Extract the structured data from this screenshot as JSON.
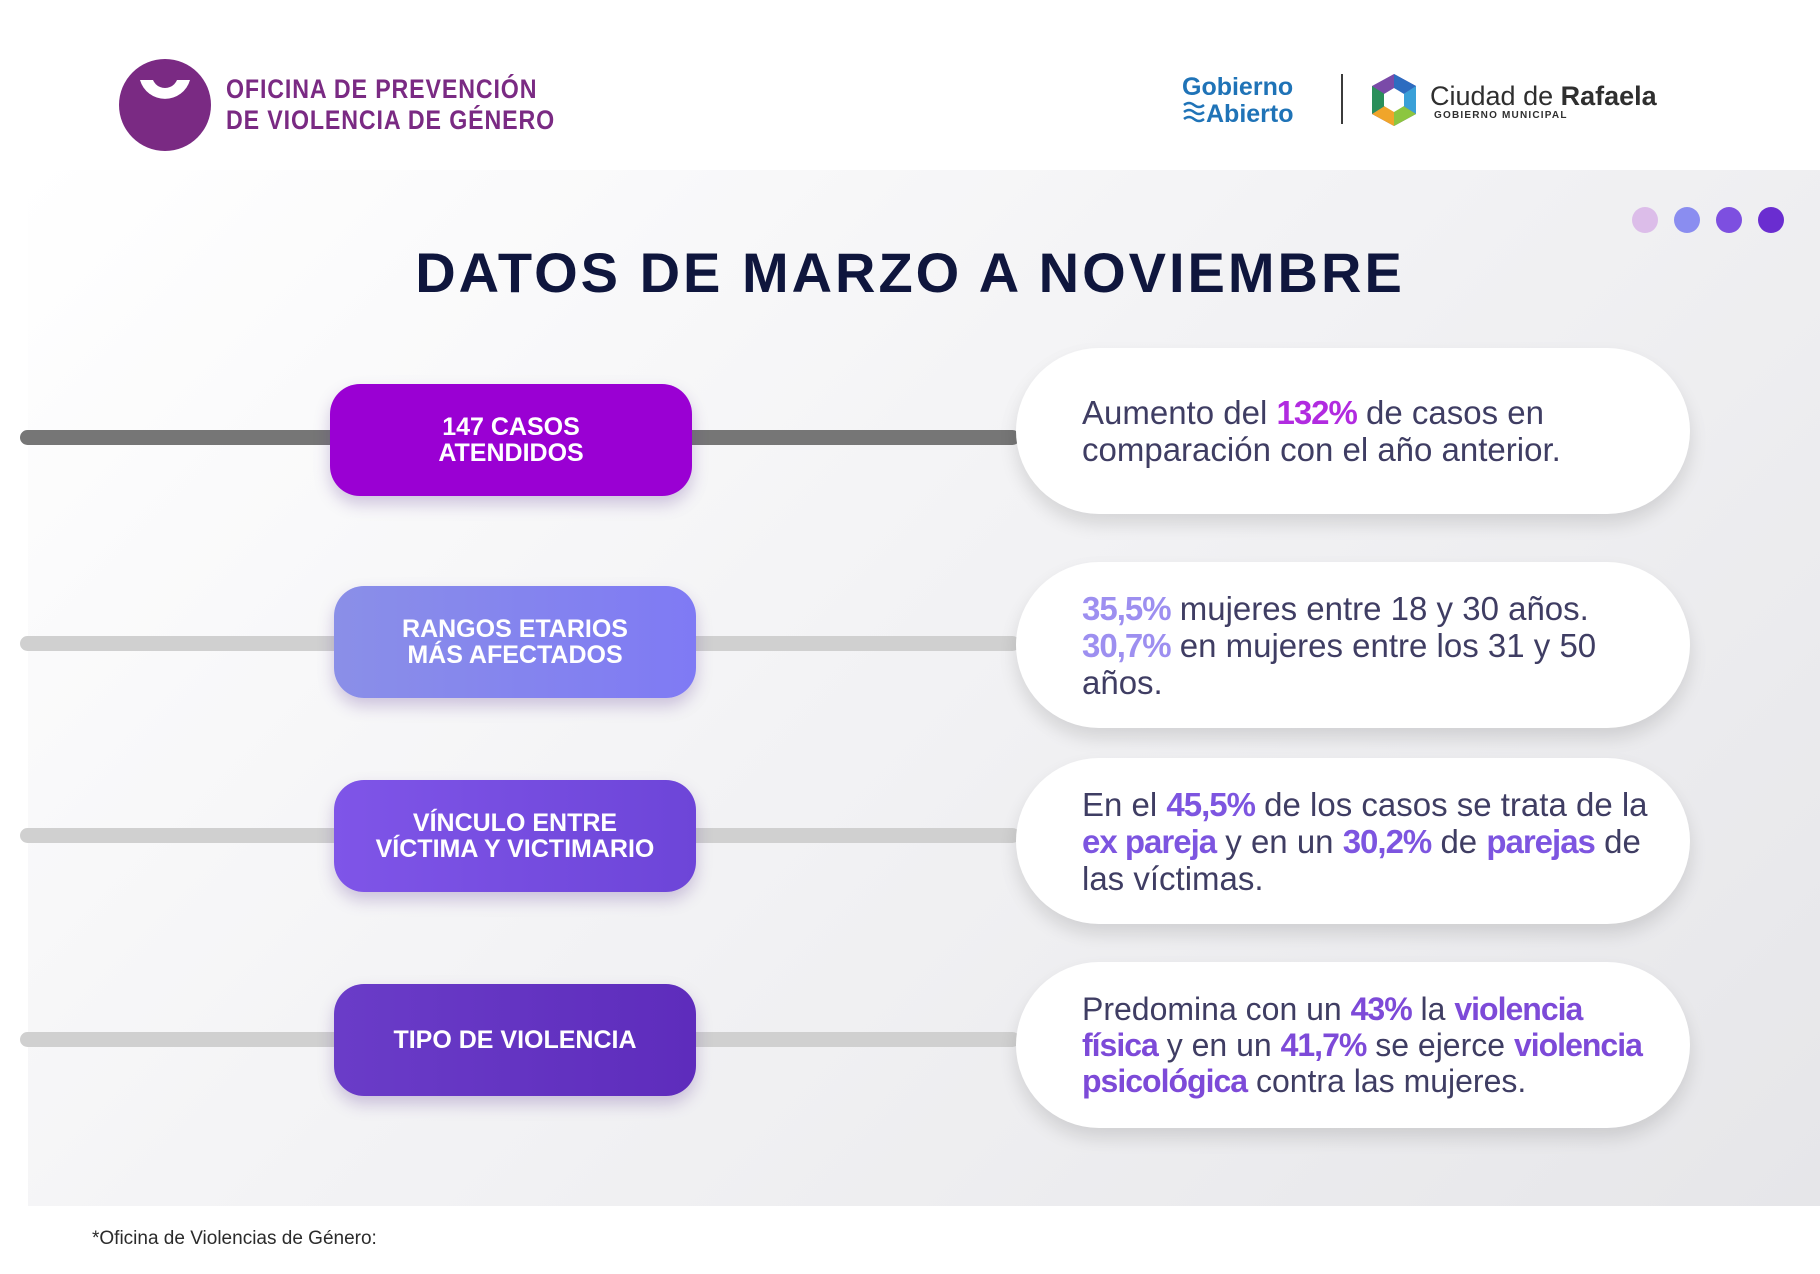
{
  "header": {
    "logo_line1": "OFICINA DE PREVENCIÓN",
    "logo_line2": "DE VIOLENCIA DE GÉNERO",
    "gob_line1": "Gobierno",
    "gob_line2": "Abierto",
    "rafaela_city": "Ciudad de ",
    "rafaela_name": "Rafaela",
    "rafaela_sub": "GOBIERNO MUNICIPAL"
  },
  "colors": {
    "dots": [
      "#dcbde9",
      "#8a8df0",
      "#7d4fe0",
      "#6a2dd0"
    ],
    "accent_magenta": "#b12be0",
    "accent_lavender": "#9d8ff0",
    "accent_violet": "#7d55e0"
  },
  "title": "DATOS DE MARZO A NOVIEMBRE",
  "rows": [
    {
      "label_line1": "147 CASOS",
      "label_line2": "ATENDIDOS",
      "text": {
        "a": "Aumento del ",
        "b": "132%",
        "c": " de casos en comparación con el año anterior."
      }
    },
    {
      "label_line1": "RANGOS ETARIOS",
      "label_line2": "MÁS AFECTADOS",
      "text": {
        "a": "35,5%",
        "b": " mujeres entre 18 y 30 años. ",
        "c": "30,7%",
        "d": " en mujeres entre los 31 y 50 años."
      }
    },
    {
      "label_line1": "VÍNCULO ENTRE",
      "label_line2": "VÍCTIMA Y VICTIMARIO",
      "text": {
        "a": "En el ",
        "b": "45,5%",
        "c": " de los casos se trata de la ",
        "d": "ex pareja",
        "e": " y en un ",
        "f": "30,2%",
        "g": " de ",
        "h": "parejas",
        "i": " de las víctimas."
      }
    },
    {
      "label_line1": "TIPO DE VIOLENCIA",
      "text": {
        "a": "Predomina con un ",
        "b": "43%",
        "c": " la ",
        "d": "violencia física",
        "e": " y en un ",
        "f": "41,7%",
        "g": " se ejerce ",
        "h": "violencia psicológica",
        "i": " contra las mujeres."
      }
    }
  ],
  "footer": "*Oficina de Violencias de Género:"
}
